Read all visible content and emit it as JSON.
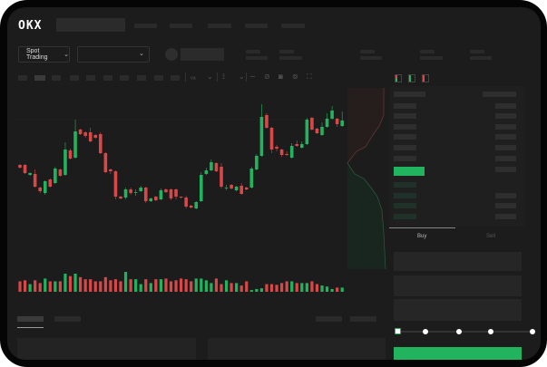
{
  "header": {
    "logo": "OKX"
  },
  "toolbar": {
    "market_dropdown": "Spot Trading"
  },
  "chart_icons": [
    "indicator-icon",
    "chevron-down-icon",
    "draw-icon",
    "chevron-down-icon",
    "line-icon",
    "ruler-icon",
    "camera-icon",
    "settings-icon",
    "fullscreen-icon"
  ],
  "orderbook": {
    "view_icons": [
      "book-both-icon",
      "book-bids-icon",
      "book-asks-icon"
    ]
  },
  "order_form": {
    "tabs": [
      "Buy",
      "Sell"
    ],
    "active_tab": "Buy",
    "leverage_slider_value": 0
  },
  "colors": {
    "up": "#22b35e",
    "down": "#d94848",
    "accent": "#22b35e",
    "background": "#1c1c1c"
  },
  "chart_data": {
    "type": "candlestick",
    "candles_ohlc": [
      [
        58,
        55,
        59,
        54
      ],
      [
        58,
        49,
        59,
        48
      ],
      [
        47,
        49,
        50,
        46
      ],
      [
        48,
        34,
        53,
        33
      ],
      [
        33,
        29,
        34,
        27
      ],
      [
        27,
        40,
        41,
        25
      ],
      [
        42,
        34,
        43,
        33
      ],
      [
        38,
        54,
        56,
        37
      ],
      [
        53,
        46,
        54,
        45
      ],
      [
        47,
        75,
        83,
        46
      ],
      [
        74,
        65,
        76,
        64
      ],
      [
        66,
        95,
        108,
        65
      ],
      [
        97,
        92,
        98,
        91
      ],
      [
        94,
        90,
        95,
        88
      ],
      [
        94,
        84,
        99,
        83
      ],
      [
        91,
        88,
        92,
        87
      ],
      [
        92,
        71,
        94,
        70
      ],
      [
        71,
        50,
        72,
        49
      ],
      [
        53,
        51,
        54,
        48
      ],
      [
        51,
        23,
        52,
        20
      ],
      [
        23,
        21,
        24,
        20
      ],
      [
        22,
        31,
        33,
        20
      ],
      [
        31,
        27,
        33,
        25
      ],
      [
        28,
        28,
        31,
        24
      ],
      [
        29,
        33,
        35,
        28
      ],
      [
        33,
        18,
        34,
        16
      ],
      [
        18,
        21,
        22,
        17
      ],
      [
        23,
        19,
        24,
        18
      ],
      [
        20,
        30,
        32,
        19
      ],
      [
        31,
        28,
        32,
        27
      ],
      [
        31,
        21,
        32,
        19
      ],
      [
        31,
        23,
        32,
        20
      ],
      [
        23,
        22,
        23,
        21
      ],
      [
        22,
        12,
        24,
        10
      ],
      [
        13,
        11,
        14,
        10
      ],
      [
        10,
        17,
        18,
        9
      ],
      [
        18,
        47,
        50,
        17
      ],
      [
        48,
        52,
        55,
        47
      ],
      [
        52,
        61,
        64,
        51
      ],
      [
        60,
        51,
        61,
        50
      ],
      [
        56,
        34,
        60,
        32
      ],
      [
        33,
        33,
        36,
        30
      ],
      [
        36,
        32,
        37,
        31
      ],
      [
        30,
        34,
        35,
        29
      ],
      [
        35,
        26,
        38,
        25
      ],
      [
        33,
        31,
        34,
        30
      ],
      [
        33,
        54,
        56,
        32
      ],
      [
        53,
        68,
        70,
        52
      ],
      [
        68,
        111,
        125,
        67
      ],
      [
        113,
        99,
        115,
        98
      ],
      [
        99,
        75,
        100,
        71
      ],
      [
        78,
        76,
        80,
        73
      ],
      [
        75,
        69,
        76,
        67
      ],
      [
        70,
        69,
        73,
        68
      ],
      [
        66,
        79,
        82,
        65
      ],
      [
        81,
        79,
        85,
        78
      ],
      [
        77,
        81,
        84,
        76
      ],
      [
        81,
        108,
        110,
        80
      ],
      [
        110,
        97,
        111,
        96
      ],
      [
        98,
        93,
        99,
        92
      ],
      [
        91,
        100,
        105,
        90
      ],
      [
        100,
        109,
        115,
        99
      ],
      [
        109,
        118,
        123,
        108
      ],
      [
        109,
        103,
        110,
        100
      ],
      [
        101,
        107,
        117,
        100
      ]
    ],
    "volume": [
      30,
      33,
      22,
      33,
      25,
      38,
      30,
      30,
      30,
      52,
      45,
      52,
      42,
      36,
      36,
      30,
      30,
      42,
      33,
      36,
      30,
      57,
      36,
      36,
      22,
      36,
      25,
      36,
      36,
      38,
      30,
      33,
      38,
      36,
      30,
      38,
      38,
      33,
      25,
      38,
      22,
      33,
      25,
      25,
      18,
      30,
      5,
      8,
      10,
      22,
      22,
      20,
      25,
      30,
      30,
      25,
      25,
      25,
      30,
      22,
      18,
      15,
      8,
      12,
      12
    ],
    "grid": false
  }
}
